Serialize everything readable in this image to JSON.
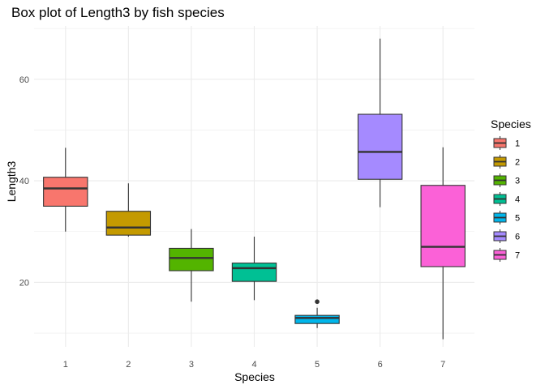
{
  "chart_data": {
    "type": "box",
    "title": "Box plot of Length3 by fish species",
    "xlabel": "Species",
    "ylabel": "Length3",
    "ylim": [
      7.3,
      70.5
    ],
    "yticks": [
      20,
      40,
      60
    ],
    "grid": true,
    "legend": {
      "title": "Species",
      "placement": "right"
    },
    "categories": [
      "1",
      "2",
      "3",
      "4",
      "5",
      "6",
      "7"
    ],
    "series": [
      {
        "name": "1",
        "color": "#F8766D",
        "min": 30.0,
        "q1": 35.0,
        "median": 38.5,
        "q3": 40.7,
        "max": 46.5,
        "outliers": []
      },
      {
        "name": "2",
        "color": "#C49A00",
        "min": 29.0,
        "q1": 29.3,
        "median": 30.8,
        "q3": 34.0,
        "max": 39.5,
        "outliers": []
      },
      {
        "name": "3",
        "color": "#53B400",
        "min": 16.2,
        "q1": 22.3,
        "median": 24.8,
        "q3": 26.7,
        "max": 30.5,
        "outliers": []
      },
      {
        "name": "4",
        "color": "#00C094",
        "min": 16.5,
        "q1": 20.2,
        "median": 22.8,
        "q3": 23.8,
        "max": 29.0,
        "outliers": []
      },
      {
        "name": "5",
        "color": "#00B6EB",
        "min": 11.0,
        "q1": 11.9,
        "median": 13.0,
        "q3": 13.5,
        "max": 15.0,
        "outliers": [
          16.2
        ]
      },
      {
        "name": "6",
        "color": "#A58AFF",
        "min": 34.8,
        "q1": 40.3,
        "median": 45.7,
        "q3": 53.1,
        "max": 68.0,
        "outliers": []
      },
      {
        "name": "7",
        "color": "#FB61D7",
        "min": 8.8,
        "q1": 23.1,
        "median": 27.0,
        "q3": 39.1,
        "max": 46.6,
        "outliers": []
      }
    ]
  }
}
